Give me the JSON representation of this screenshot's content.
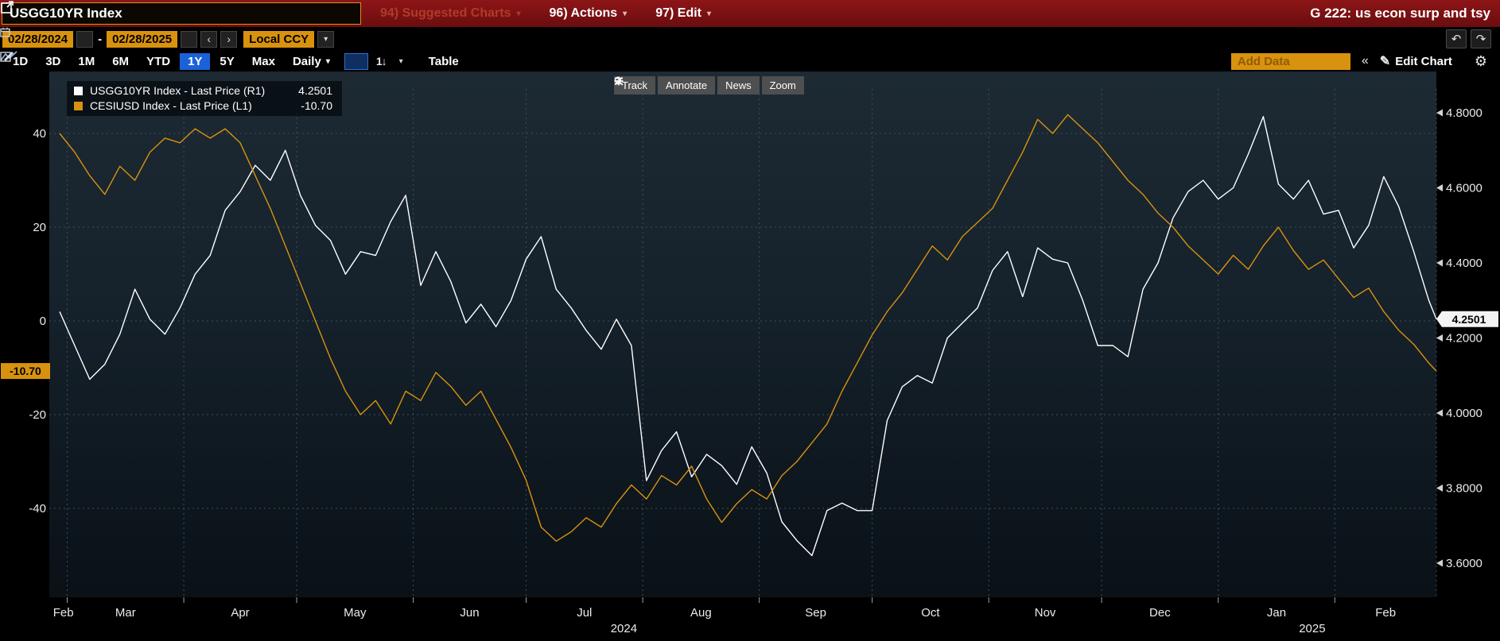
{
  "header": {
    "ticker": "USGG10YR Index",
    "menu_suggested": "94) Suggested Charts",
    "menu_actions": "96) Actions",
    "menu_edit": "97) Edit",
    "chart_id": "G 222: us econ surp and tsy"
  },
  "toolbar2": {
    "date_from": "02/28/2024",
    "date_to": "02/28/2025",
    "separator": "-",
    "currency": "Local CCY"
  },
  "toolbar3": {
    "ranges": [
      "1D",
      "3D",
      "1M",
      "6M",
      "YTD",
      "1Y",
      "5Y",
      "Max"
    ],
    "active_range": "1Y",
    "frequency": "Daily",
    "sort_label": "1↓",
    "table_label": "Table",
    "add_data_placeholder": "Add Data",
    "edit_chart_label": "Edit Chart"
  },
  "chart_tools": {
    "track": "Track",
    "annotate": "Annotate",
    "news": "News",
    "zoom": "Zoom"
  },
  "legend": {
    "series": [
      {
        "label": "USGG10YR Index - Last Price (R1)",
        "value": "4.2501",
        "color": "#ffffff"
      },
      {
        "label": "CESIUSD Index - Last Price (L1)",
        "value": "-10.70",
        "color": "#d8920f"
      }
    ]
  },
  "icons": {
    "caret": "▾",
    "chevron_left": "‹",
    "chevron_right": "›",
    "undo": "↶",
    "redo": "↷",
    "collapse": "«",
    "pencil": "✎",
    "gear": "⚙"
  },
  "chart_data": {
    "type": "line",
    "x_unit": "days since 2024-02-28",
    "x_range_days": 366,
    "months": [
      {
        "label": "Feb",
        "start_day": 0
      },
      {
        "label": "Mar",
        "start_day": 2
      },
      {
        "label": "Apr",
        "start_day": 33
      },
      {
        "label": "May",
        "start_day": 63
      },
      {
        "label": "Jun",
        "start_day": 94
      },
      {
        "label": "Jul",
        "start_day": 124
      },
      {
        "label": "Aug",
        "start_day": 155
      },
      {
        "label": "Sep",
        "start_day": 186
      },
      {
        "label": "Oct",
        "start_day": 216
      },
      {
        "label": "Nov",
        "start_day": 247
      },
      {
        "label": "Dec",
        "start_day": 277
      },
      {
        "label": "Jan",
        "start_day": 308
      },
      {
        "label": "Feb",
        "start_day": 339
      }
    ],
    "year_labels": [
      {
        "label": "2024",
        "day": 150
      },
      {
        "label": "2025",
        "day": 333
      }
    ],
    "left_axis": {
      "ticks": [
        40,
        20,
        0,
        -20,
        -40
      ],
      "last_badge": "-10.70",
      "badge_value": -10.7,
      "color": "#d8920f"
    },
    "right_axis": {
      "ticks": [
        4.8,
        4.6,
        4.4,
        4.2,
        4.0,
        3.8,
        3.6
      ],
      "tick_labels": [
        "4.8000",
        "4.6000",
        "4.4000",
        "4.2000",
        "4.0000",
        "3.8000",
        "3.6000"
      ],
      "last_badge": "4.2501",
      "badge_value": 4.2501
    },
    "days": [
      0,
      4,
      8,
      12,
      16,
      20,
      24,
      28,
      32,
      36,
      40,
      44,
      48,
      52,
      56,
      60,
      64,
      68,
      72,
      76,
      80,
      84,
      88,
      92,
      96,
      100,
      104,
      108,
      112,
      116,
      120,
      124,
      128,
      132,
      136,
      140,
      144,
      148,
      152,
      156,
      160,
      164,
      168,
      172,
      176,
      180,
      184,
      188,
      192,
      196,
      200,
      204,
      208,
      212,
      216,
      220,
      224,
      228,
      232,
      236,
      240,
      244,
      248,
      252,
      256,
      260,
      264,
      268,
      272,
      276,
      280,
      284,
      288,
      292,
      296,
      300,
      304,
      308,
      312,
      316,
      320,
      324,
      328,
      332,
      336,
      340,
      344,
      348,
      352,
      356,
      360,
      364,
      366
    ],
    "series": [
      {
        "name": "USGG10YR Index",
        "axis": "right",
        "color": "#ffffff",
        "values": [
          4.27,
          4.18,
          4.09,
          4.13,
          4.21,
          4.33,
          4.25,
          4.21,
          4.28,
          4.37,
          4.42,
          4.54,
          4.59,
          4.66,
          4.62,
          4.7,
          4.58,
          4.5,
          4.46,
          4.37,
          4.43,
          4.42,
          4.51,
          4.58,
          4.34,
          4.43,
          4.35,
          4.24,
          4.29,
          4.23,
          4.3,
          4.41,
          4.47,
          4.33,
          4.28,
          4.22,
          4.17,
          4.25,
          4.18,
          3.82,
          3.9,
          3.95,
          3.83,
          3.89,
          3.86,
          3.81,
          3.91,
          3.84,
          3.71,
          3.66,
          3.62,
          3.74,
          3.76,
          3.74,
          3.74,
          3.98,
          4.07,
          4.1,
          4.08,
          4.2,
          4.24,
          4.28,
          4.38,
          4.43,
          4.31,
          4.44,
          4.41,
          4.4,
          4.3,
          4.18,
          4.18,
          4.15,
          4.33,
          4.4,
          4.52,
          4.59,
          4.62,
          4.57,
          4.6,
          4.69,
          4.79,
          4.61,
          4.57,
          4.62,
          4.53,
          4.54,
          4.44,
          4.5,
          4.63,
          4.55,
          4.43,
          4.3,
          4.2501
        ]
      },
      {
        "name": "CESIUSD Index",
        "axis": "left",
        "color": "#d8920f",
        "values": [
          40,
          36,
          31,
          27,
          33,
          30,
          36,
          39,
          38,
          41,
          39,
          41,
          38,
          31,
          24,
          16,
          8,
          0,
          -8,
          -15,
          -20,
          -17,
          -22,
          -15,
          -17,
          -11,
          -14,
          -18,
          -15,
          -21,
          -27,
          -34,
          -44,
          -47,
          -45,
          -42,
          -44,
          -39,
          -35,
          -38,
          -33,
          -35,
          -31,
          -38,
          -43,
          -39,
          -36,
          -38,
          -33,
          -30,
          -26,
          -22,
          -15,
          -9,
          -3,
          2,
          6,
          11,
          16,
          13,
          18,
          21,
          24,
          30,
          36,
          43,
          40,
          44,
          41,
          38,
          34,
          30,
          27,
          23,
          20,
          16,
          13,
          10,
          14,
          11,
          16,
          20,
          15,
          11,
          13,
          9,
          5,
          7,
          2,
          -2,
          -5,
          -9,
          -10.7
        ]
      }
    ]
  }
}
